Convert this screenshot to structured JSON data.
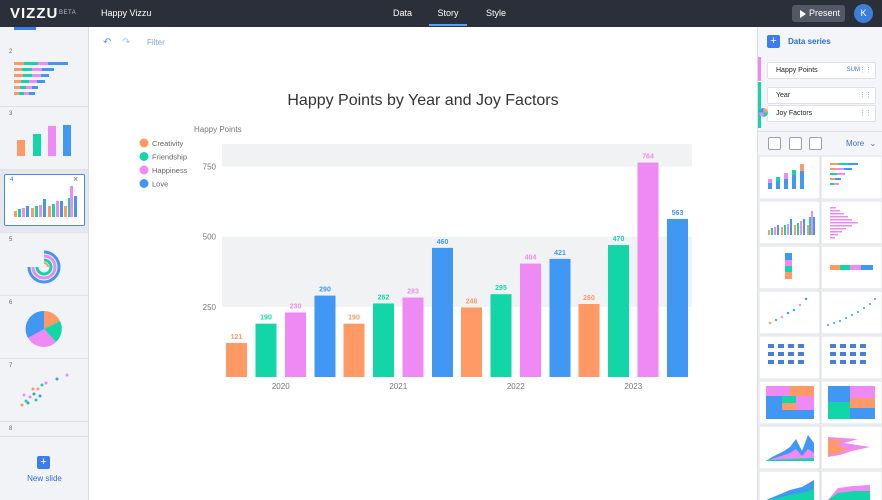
{
  "app": {
    "logo": "VIZZU",
    "beta": "BETA",
    "project": "Happy Vizzu"
  },
  "nav": {
    "tabs": [
      "Data",
      "Story",
      "Style"
    ],
    "active": "Story"
  },
  "header": {
    "present_label": "Present",
    "avatar": "K"
  },
  "toolbar": {
    "undo_icon": "undo-icon",
    "redo_icon": "redo-icon",
    "filter_label": "Filter"
  },
  "slides": {
    "numbers": [
      "2",
      "3",
      "4",
      "5",
      "6",
      "7",
      "8"
    ],
    "active": "4",
    "new_slide_label": "New slide"
  },
  "right_panel": {
    "data_series_label": "Data series",
    "channels": [
      {
        "label": "Happy Points",
        "aggregate": "SUM"
      },
      {
        "label": "Year"
      },
      {
        "label": "Joy Factors"
      }
    ],
    "more_label": "More"
  },
  "colors": {
    "Creativity": "#ff9966",
    "Friendship": "#12d6a8",
    "Happiness": "#ef8af5",
    "Love": "#4197f4"
  },
  "chart_data": {
    "type": "bar",
    "title": "Happy Points by Year and Joy Factors",
    "ylabel": "Happy Points",
    "xlabel": "",
    "categories": [
      "2020",
      "2021",
      "2022",
      "2023"
    ],
    "yticks": [
      250,
      500,
      750
    ],
    "ylim": [
      0,
      830
    ],
    "legend_position": "top-left",
    "series": [
      {
        "name": "Creativity",
        "values": [
          121,
          190,
          248,
          260
        ]
      },
      {
        "name": "Friendship",
        "values": [
          190,
          262,
          295,
          470
        ]
      },
      {
        "name": "Happiness",
        "values": [
          230,
          283,
          404,
          764
        ]
      },
      {
        "name": "Love",
        "values": [
          290,
          460,
          421,
          563
        ]
      }
    ]
  }
}
